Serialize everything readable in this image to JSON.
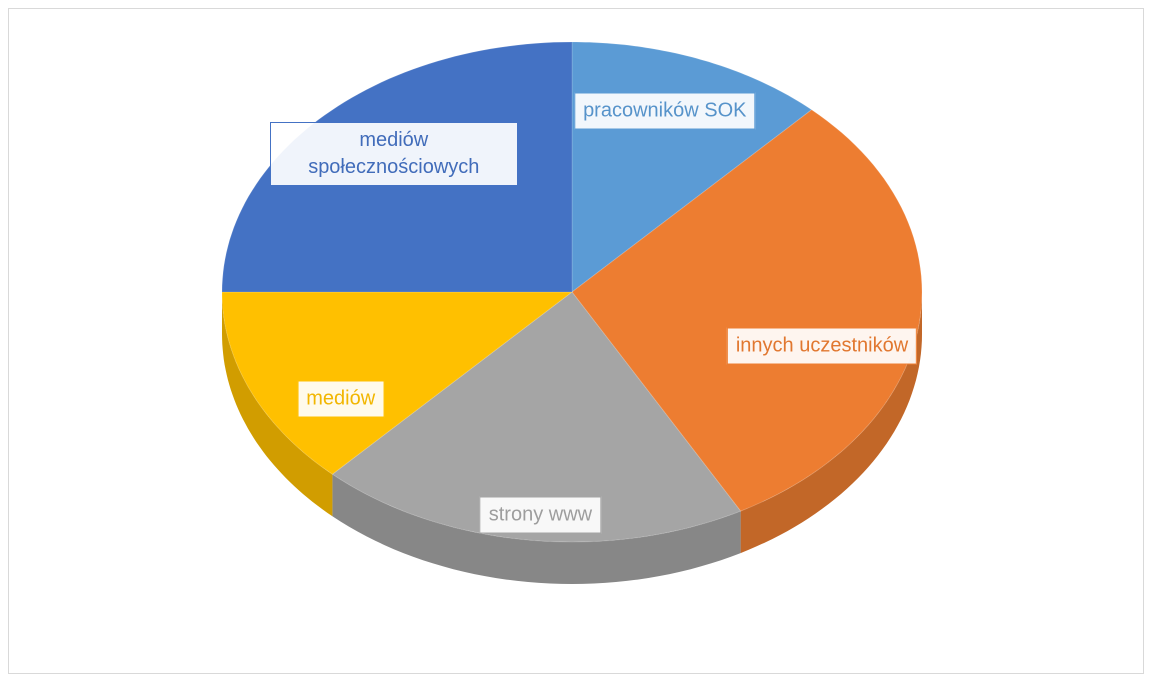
{
  "chart_data": {
    "type": "pie3d",
    "categories": [
      "pracowników SOK",
      "innych uczestników",
      "strony www",
      "mediów",
      "mediów społecznościowych"
    ],
    "values": [
      12,
      30,
      20,
      13,
      25
    ],
    "colors": [
      "#5b9bd5",
      "#ed7d31",
      "#a5a5a5",
      "#ffc000",
      "#4472c4"
    ],
    "start_angle": 0
  }
}
